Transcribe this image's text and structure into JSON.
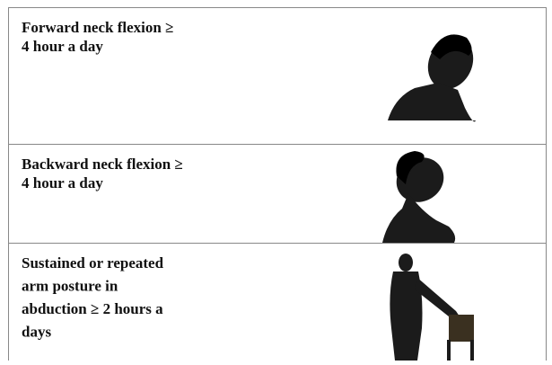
{
  "table": {
    "rows": [
      {
        "label": [
          "Forward neck flexion ≥",
          "4 hour a day"
        ]
      },
      {
        "label": [
          "Backward neck flexion ≥",
          "4 hour a day"
        ]
      },
      {
        "label": [
          "Sustained or repeated",
          "arm posture in",
          "abduction ≥ 2 hours a",
          "days"
        ]
      }
    ]
  }
}
